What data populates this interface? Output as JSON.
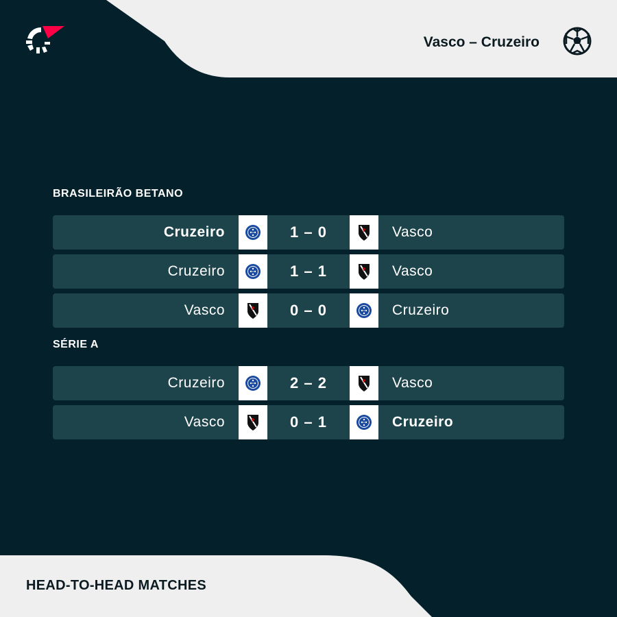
{
  "header": {
    "title": "Vasco – Cruzeiro",
    "brand_logo": "flashscore-logo",
    "sport_icon": "football-icon"
  },
  "colors": {
    "background": "#04202a",
    "row": "#1d434b",
    "panel": "#efefef",
    "accent": "#ff0046"
  },
  "sections": [
    {
      "name": "BRASILEIRÃO BETANO",
      "matches": [
        {
          "home": "Cruzeiro",
          "away": "Vasco",
          "score": "1 – 0",
          "home_bold": true,
          "away_bold": false
        },
        {
          "home": "Cruzeiro",
          "away": "Vasco",
          "score": "1 – 1",
          "home_bold": false,
          "away_bold": false
        },
        {
          "home": "Vasco",
          "away": "Cruzeiro",
          "score": "0 – 0",
          "home_bold": false,
          "away_bold": false
        }
      ]
    },
    {
      "name": "SÉRIE A",
      "matches": [
        {
          "home": "Cruzeiro",
          "away": "Vasco",
          "score": "2 – 2",
          "home_bold": false,
          "away_bold": false
        },
        {
          "home": "Vasco",
          "away": "Cruzeiro",
          "score": "0 – 1",
          "home_bold": false,
          "away_bold": true
        }
      ]
    }
  ],
  "footer": {
    "label": "HEAD-TO-HEAD MATCHES"
  }
}
